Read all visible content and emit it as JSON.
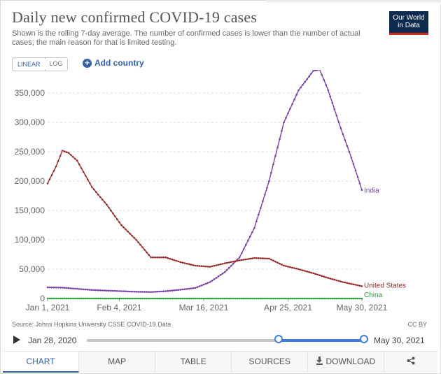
{
  "header": {
    "title": "Daily new confirmed COVID-19 cases",
    "subtitle": "Shown is the rolling 7-day average. The number of confirmed cases is lower than the number of actual cases; the main reason for that is limited testing.",
    "logo_line1": "Our World",
    "logo_line2": "in Data",
    "logo_color": "#0d2a4f",
    "logo_accent": "#d42b21"
  },
  "controls": {
    "linear_label": "LINEAR",
    "log_label": "LOG",
    "add_country_label": "Add country",
    "accent_color": "#3360a9"
  },
  "footer": {
    "source": "Source: Johns Hopkins University CSSE COVID-19 Data",
    "license": "CC BY"
  },
  "timeline": {
    "start_label": "Jan 28, 2020",
    "end_label": "May 30, 2021",
    "selected_start_fraction": 0.69,
    "selected_end_fraction": 1.0
  },
  "tabs": [
    {
      "label": "CHART",
      "active": true
    },
    {
      "label": "MAP",
      "active": false
    },
    {
      "label": "TABLE",
      "active": false
    },
    {
      "label": "SOURCES",
      "active": false
    },
    {
      "label": "DOWNLOAD",
      "active": false
    },
    {
      "label": "",
      "icon": "share-icon",
      "active": false
    }
  ],
  "chart_data": {
    "type": "line",
    "title": "Daily new confirmed COVID-19 cases",
    "xlabel": "",
    "ylabel": "",
    "x_range": [
      "2021-01-01",
      "2021-05-30"
    ],
    "ylim": [
      0,
      380000
    ],
    "yticks": [
      0,
      50000,
      100000,
      150000,
      200000,
      250000,
      300000,
      350000
    ],
    "ytick_labels": [
      "0",
      "50,000",
      "100,000",
      "150,000",
      "200,000",
      "250,000",
      "300,000",
      "350,000"
    ],
    "xticks": [
      "2021-01-01",
      "2021-02-04",
      "2021-03-16",
      "2021-04-25",
      "2021-05-30"
    ],
    "xtick_labels": [
      "Jan 1, 2021",
      "Feb 4, 2021",
      "Mar 16, 2021",
      "Apr 25, 2021",
      "May 30, 2021"
    ],
    "grid": "horizontal-dashed",
    "legend": "line-end labels",
    "series": [
      {
        "name": "India",
        "color": "#7b3fa6",
        "points": [
          [
            "2021-01-01",
            19000
          ],
          [
            "2021-01-08",
            18500
          ],
          [
            "2021-01-15",
            16500
          ],
          [
            "2021-01-22",
            14500
          ],
          [
            "2021-01-29",
            13500
          ],
          [
            "2021-02-05",
            12500
          ],
          [
            "2021-02-12",
            11500
          ],
          [
            "2021-02-19",
            11000
          ],
          [
            "2021-02-26",
            12500
          ],
          [
            "2021-03-05",
            15000
          ],
          [
            "2021-03-12",
            18000
          ],
          [
            "2021-03-19",
            28000
          ],
          [
            "2021-03-26",
            45000
          ],
          [
            "2021-04-02",
            70000
          ],
          [
            "2021-04-09",
            120000
          ],
          [
            "2021-04-16",
            200000
          ],
          [
            "2021-04-23",
            300000
          ],
          [
            "2021-04-30",
            355000
          ],
          [
            "2021-05-07",
            388000
          ],
          [
            "2021-05-10",
            390000
          ],
          [
            "2021-05-14",
            355000
          ],
          [
            "2021-05-20",
            290000
          ],
          [
            "2021-05-25",
            240000
          ],
          [
            "2021-05-30",
            185000
          ]
        ]
      },
      {
        "name": "United States",
        "color": "#962a2a",
        "points": [
          [
            "2021-01-01",
            196000
          ],
          [
            "2021-01-05",
            225000
          ],
          [
            "2021-01-08",
            252000
          ],
          [
            "2021-01-11",
            248000
          ],
          [
            "2021-01-15",
            235000
          ],
          [
            "2021-01-22",
            190000
          ],
          [
            "2021-01-29",
            160000
          ],
          [
            "2021-02-05",
            125000
          ],
          [
            "2021-02-12",
            100000
          ],
          [
            "2021-02-19",
            70000
          ],
          [
            "2021-02-26",
            70000
          ],
          [
            "2021-03-05",
            62000
          ],
          [
            "2021-03-12",
            56000
          ],
          [
            "2021-03-19",
            54000
          ],
          [
            "2021-03-26",
            60000
          ],
          [
            "2021-04-02",
            65000
          ],
          [
            "2021-04-09",
            69000
          ],
          [
            "2021-04-16",
            68000
          ],
          [
            "2021-04-23",
            56000
          ],
          [
            "2021-04-30",
            50000
          ],
          [
            "2021-05-07",
            43000
          ],
          [
            "2021-05-14",
            35000
          ],
          [
            "2021-05-21",
            28000
          ],
          [
            "2021-05-30",
            21000
          ]
        ]
      },
      {
        "name": "China",
        "color": "#2b9c3a",
        "points": [
          [
            "2021-01-01",
            100
          ],
          [
            "2021-01-15",
            120
          ],
          [
            "2021-02-01",
            40
          ],
          [
            "2021-03-01",
            10
          ],
          [
            "2021-04-01",
            15
          ],
          [
            "2021-05-01",
            12
          ],
          [
            "2021-05-30",
            20
          ]
        ]
      }
    ]
  }
}
